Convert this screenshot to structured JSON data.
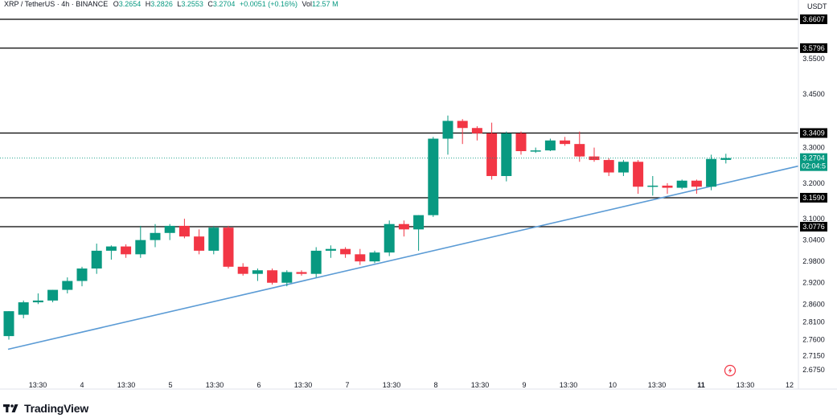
{
  "header": {
    "symbol": "XRP / TetherUS · 4h · BINANCE",
    "o_label": "O",
    "o_value": "3.2654",
    "h_label": "H",
    "h_value": "3.2826",
    "l_label": "L",
    "l_value": "3.2553",
    "c_label": "C",
    "c_value": "3.2704",
    "change": "+0.0051 (+0.16%)",
    "vol_label": "Vol",
    "vol_value": "12.57 M"
  },
  "unit": "USDT",
  "brand": "TradingView",
  "colors": {
    "up": "#089981",
    "down": "#F23645",
    "trendline": "#5B9BD5",
    "level": "#000000",
    "current": "#089981"
  },
  "countdown": "02:04:5",
  "chart_data": {
    "type": "candlestick",
    "ylim": [
      2.655,
      3.69
    ],
    "y_ticks": [
      "3.6607",
      "3.5796",
      "3.5500",
      "3.4500",
      "3.3409",
      "3.3000",
      "3.2704",
      "3.2000",
      "3.1590",
      "3.1000",
      "3.0776",
      "3.0400",
      "2.9800",
      "2.9200",
      "2.8600",
      "2.8100",
      "2.7600",
      "2.7150",
      "2.6750"
    ],
    "x_ticks": [
      "13:30",
      "4",
      "13:30",
      "5",
      "13:30",
      "6",
      "13:30",
      "7",
      "13:30",
      "8",
      "13:30",
      "9",
      "13:30",
      "10",
      "13:30",
      "11",
      "13:30",
      "12"
    ],
    "x_ticks_bold": [
      "11"
    ],
    "horizontal_levels": [
      3.6607,
      3.5796,
      3.3409,
      3.159,
      3.0776
    ],
    "current_price": 3.2704,
    "trendline": {
      "start": {
        "x": "start",
        "y": 2.733
      },
      "end": {
        "x": "end",
        "y": 3.248
      }
    },
    "candles": [
      {
        "o": 2.77,
        "h": 2.84,
        "l": 2.76,
        "c": 2.84
      },
      {
        "o": 2.83,
        "h": 2.87,
        "l": 2.82,
        "c": 2.865
      },
      {
        "o": 2.865,
        "h": 2.89,
        "l": 2.86,
        "c": 2.87
      },
      {
        "o": 2.87,
        "h": 2.9,
        "l": 2.865,
        "c": 2.9
      },
      {
        "o": 2.9,
        "h": 2.935,
        "l": 2.89,
        "c": 2.925
      },
      {
        "o": 2.925,
        "h": 2.965,
        "l": 2.91,
        "c": 2.96
      },
      {
        "o": 2.96,
        "h": 3.03,
        "l": 2.945,
        "c": 3.01
      },
      {
        "o": 3.01,
        "h": 3.025,
        "l": 2.985,
        "c": 3.022
      },
      {
        "o": 3.022,
        "h": 3.028,
        "l": 2.99,
        "c": 3.0
      },
      {
        "o": 3.0,
        "h": 3.08,
        "l": 2.99,
        "c": 3.04
      },
      {
        "o": 3.04,
        "h": 3.085,
        "l": 3.02,
        "c": 3.06
      },
      {
        "o": 3.06,
        "h": 3.085,
        "l": 3.04,
        "c": 3.08
      },
      {
        "o": 3.08,
        "h": 3.1,
        "l": 3.045,
        "c": 3.05
      },
      {
        "o": 3.05,
        "h": 3.07,
        "l": 3.0,
        "c": 3.01
      },
      {
        "o": 3.01,
        "h": 3.08,
        "l": 3.0,
        "c": 3.075
      },
      {
        "o": 3.075,
        "h": 3.08,
        "l": 2.96,
        "c": 2.965
      },
      {
        "o": 2.965,
        "h": 2.975,
        "l": 2.94,
        "c": 2.945
      },
      {
        "o": 2.945,
        "h": 2.96,
        "l": 2.925,
        "c": 2.955
      },
      {
        "o": 2.955,
        "h": 2.96,
        "l": 2.915,
        "c": 2.92
      },
      {
        "o": 2.92,
        "h": 2.955,
        "l": 2.91,
        "c": 2.95
      },
      {
        "o": 2.95,
        "h": 2.955,
        "l": 2.94,
        "c": 2.945
      },
      {
        "o": 2.945,
        "h": 3.02,
        "l": 2.935,
        "c": 3.01
      },
      {
        "o": 3.01,
        "h": 3.025,
        "l": 2.99,
        "c": 3.015
      },
      {
        "o": 3.015,
        "h": 3.02,
        "l": 2.99,
        "c": 3.0
      },
      {
        "o": 3.0,
        "h": 3.015,
        "l": 2.97,
        "c": 2.98
      },
      {
        "o": 2.98,
        "h": 3.01,
        "l": 2.975,
        "c": 3.005
      },
      {
        "o": 3.005,
        "h": 3.095,
        "l": 2.995,
        "c": 3.085
      },
      {
        "o": 3.085,
        "h": 3.095,
        "l": 3.05,
        "c": 3.07
      },
      {
        "o": 3.07,
        "h": 3.11,
        "l": 3.01,
        "c": 3.11
      },
      {
        "o": 3.11,
        "h": 3.33,
        "l": 3.105,
        "c": 3.325
      },
      {
        "o": 3.325,
        "h": 3.39,
        "l": 3.28,
        "c": 3.375
      },
      {
        "o": 3.375,
        "h": 3.38,
        "l": 3.31,
        "c": 3.355
      },
      {
        "o": 3.355,
        "h": 3.36,
        "l": 3.32,
        "c": 3.34
      },
      {
        "o": 3.34,
        "h": 3.37,
        "l": 3.21,
        "c": 3.22
      },
      {
        "o": 3.22,
        "h": 3.345,
        "l": 3.205,
        "c": 3.34
      },
      {
        "o": 3.34,
        "h": 3.345,
        "l": 3.28,
        "c": 3.29
      },
      {
        "o": 3.29,
        "h": 3.3,
        "l": 3.285,
        "c": 3.292
      },
      {
        "o": 3.292,
        "h": 3.325,
        "l": 3.29,
        "c": 3.32
      },
      {
        "o": 3.32,
        "h": 3.33,
        "l": 3.305,
        "c": 3.31
      },
      {
        "o": 3.31,
        "h": 3.345,
        "l": 3.26,
        "c": 3.275
      },
      {
        "o": 3.275,
        "h": 3.3,
        "l": 3.26,
        "c": 3.265
      },
      {
        "o": 3.265,
        "h": 3.27,
        "l": 3.22,
        "c": 3.23
      },
      {
        "o": 3.23,
        "h": 3.265,
        "l": 3.22,
        "c": 3.26
      },
      {
        "o": 3.26,
        "h": 3.265,
        "l": 3.17,
        "c": 3.19
      },
      {
        "o": 3.19,
        "h": 3.22,
        "l": 3.165,
        "c": 3.193
      },
      {
        "o": 3.193,
        "h": 3.2,
        "l": 3.17,
        "c": 3.187
      },
      {
        "o": 3.187,
        "h": 3.21,
        "l": 3.183,
        "c": 3.207
      },
      {
        "o": 3.207,
        "h": 3.21,
        "l": 3.17,
        "c": 3.19
      },
      {
        "o": 3.19,
        "h": 3.28,
        "l": 3.18,
        "c": 3.268
      },
      {
        "o": 3.2654,
        "h": 3.2826,
        "l": 3.2553,
        "c": 3.2704
      }
    ]
  }
}
